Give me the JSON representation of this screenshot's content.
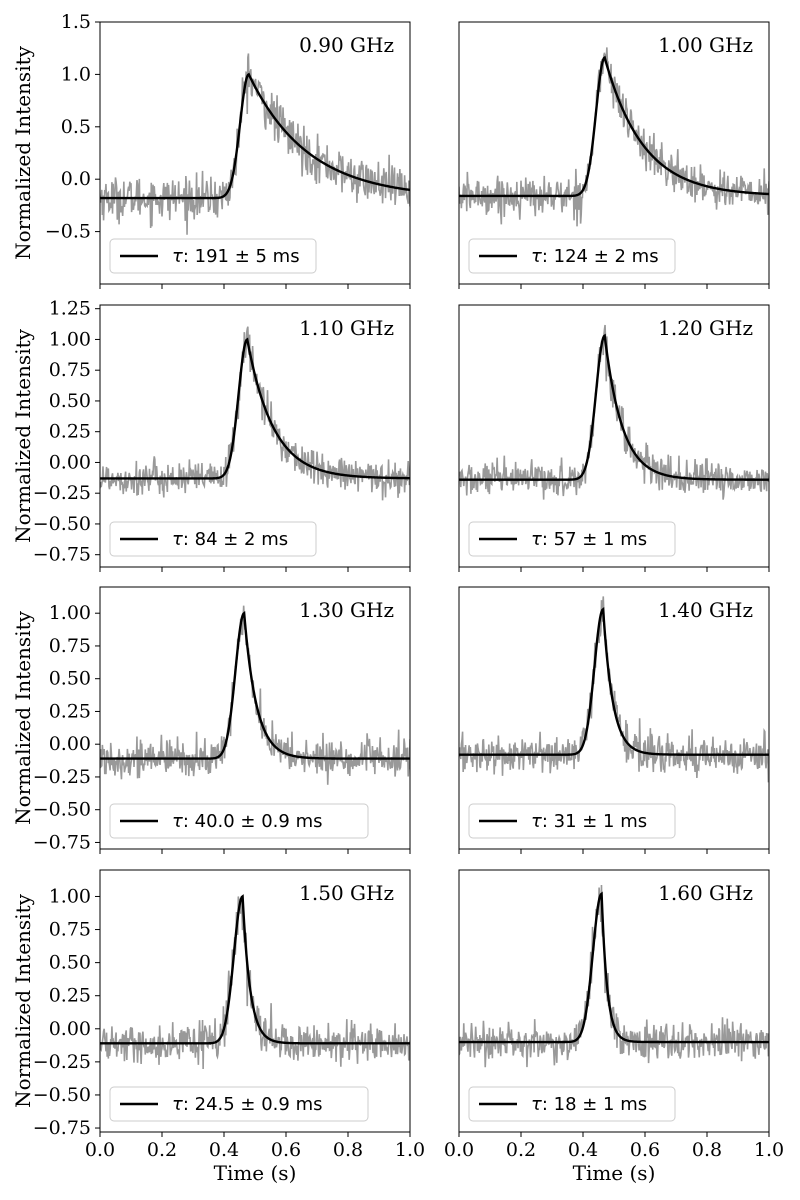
{
  "figure": {
    "ylabel": "Normalized Intensity",
    "xlabel": "Time (s)",
    "xlim": [
      0.0,
      1.0
    ],
    "xticks": [
      0.0,
      0.2,
      0.4,
      0.6,
      0.8,
      1.0
    ],
    "xtick_labels": [
      "0.0",
      "0.2",
      "0.4",
      "0.6",
      "0.8",
      "1.0"
    ],
    "colors": {
      "data": "#999999",
      "fit": "#000000"
    },
    "legend_symbol": "τ"
  },
  "chart_data": [
    {
      "type": "line",
      "title": "0.90 GHz",
      "tau_text": ": 191 ± 5 ms",
      "tau_ms": 191,
      "tau_err_ms": 5,
      "peak_time_s": 0.48,
      "baseline": -0.18,
      "peak": 1.0,
      "noise": 0.1,
      "ylim": [
        -1.0,
        1.5
      ],
      "yticks": [
        -0.5,
        0.0,
        0.5,
        1.0,
        1.5
      ],
      "ytick_labels": [
        "−0.5",
        "0.0",
        "0.5",
        "1.0",
        "1.5"
      ]
    },
    {
      "type": "line",
      "title": "1.00 GHz",
      "tau_text": ": 124 ± 2 ms",
      "tau_ms": 124,
      "tau_err_ms": 2,
      "peak_time_s": 0.47,
      "baseline": -0.16,
      "peak": 1.16,
      "noise": 0.09,
      "ylim": [
        -1.0,
        1.5
      ],
      "yticks": [],
      "ytick_labels": []
    },
    {
      "type": "line",
      "title": "1.10 GHz",
      "tau_text": ": 84 ± 2 ms",
      "tau_ms": 84,
      "tau_err_ms": 2,
      "peak_time_s": 0.475,
      "baseline": -0.13,
      "peak": 1.0,
      "noise": 0.07,
      "ylim": [
        -0.85,
        1.28
      ],
      "yticks": [
        -0.75,
        -0.5,
        -0.25,
        0.0,
        0.25,
        0.5,
        0.75,
        1.0,
        1.25
      ],
      "ytick_labels": [
        "−0.75",
        "−0.50",
        "−0.25",
        "0.00",
        "0.25",
        "0.50",
        "0.75",
        "1.00",
        "1.25"
      ]
    },
    {
      "type": "line",
      "title": "1.20 GHz",
      "tau_text": ": 57 ± 1 ms",
      "tau_ms": 57,
      "tau_err_ms": 1,
      "peak_time_s": 0.47,
      "baseline": -0.14,
      "peak": 1.03,
      "noise": 0.07,
      "ylim": [
        -0.85,
        1.28
      ],
      "yticks": [],
      "ytick_labels": []
    },
    {
      "type": "line",
      "title": "1.30 GHz",
      "tau_text": ": 40.0 ± 0.9 ms",
      "tau_ms": 40.0,
      "tau_err_ms": 0.9,
      "peak_time_s": 0.465,
      "baseline": -0.11,
      "peak": 1.0,
      "noise": 0.07,
      "ylim": [
        -0.8,
        1.2
      ],
      "yticks": [
        -0.75,
        -0.5,
        -0.25,
        0.0,
        0.25,
        0.5,
        0.75,
        1.0
      ],
      "ytick_labels": [
        "−0.75",
        "−0.50",
        "−0.25",
        "0.00",
        "0.25",
        "0.50",
        "0.75",
        "1.00"
      ]
    },
    {
      "type": "line",
      "title": "1.40 GHz",
      "tau_text": ": 31 ± 1 ms",
      "tau_ms": 31,
      "tau_err_ms": 1,
      "peak_time_s": 0.465,
      "baseline": -0.08,
      "peak": 1.03,
      "noise": 0.07,
      "ylim": [
        -0.8,
        1.2
      ],
      "yticks": [],
      "ytick_labels": []
    },
    {
      "type": "line",
      "title": "1.50 GHz",
      "tau_text": ": 24.5 ± 0.9 ms",
      "tau_ms": 24.5,
      "tau_err_ms": 0.9,
      "peak_time_s": 0.46,
      "baseline": -0.11,
      "peak": 1.0,
      "noise": 0.07,
      "ylim": [
        -0.78,
        1.2
      ],
      "yticks": [
        -0.75,
        -0.5,
        -0.25,
        0.0,
        0.25,
        0.5,
        0.75,
        1.0
      ],
      "ytick_labels": [
        "−0.75",
        "−0.50",
        "−0.25",
        "0.00",
        "0.25",
        "0.50",
        "0.75",
        "1.00"
      ]
    },
    {
      "type": "line",
      "title": "1.60 GHz",
      "tau_text": ": 18 ± 1 ms",
      "tau_ms": 18,
      "tau_err_ms": 1,
      "peak_time_s": 0.46,
      "baseline": -0.1,
      "peak": 1.02,
      "noise": 0.07,
      "ylim": [
        -0.78,
        1.2
      ],
      "yticks": [],
      "ytick_labels": []
    }
  ]
}
